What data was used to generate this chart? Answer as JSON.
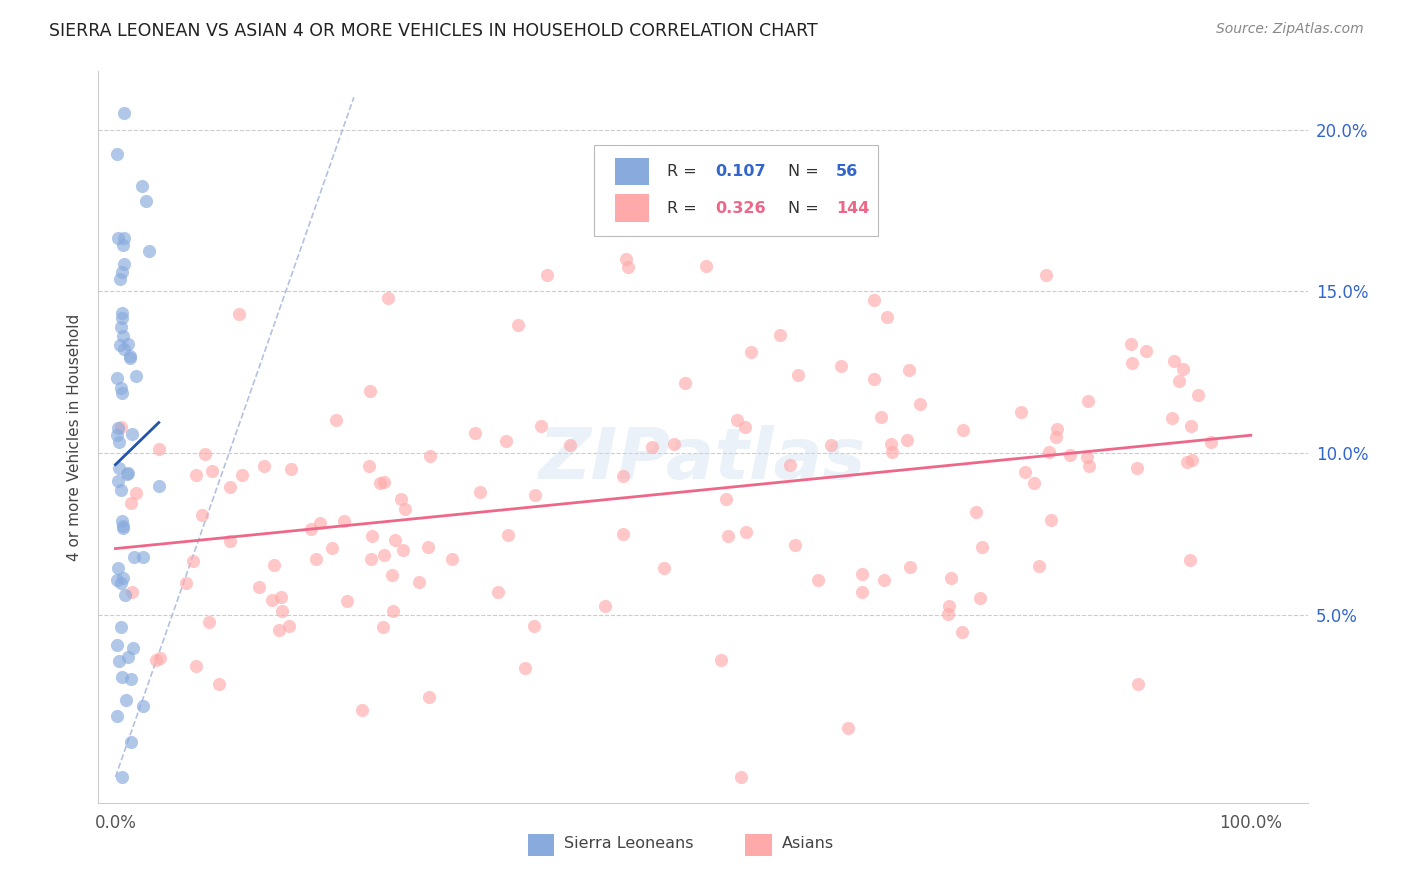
{
  "title": "SIERRA LEONEAN VS ASIAN 4 OR MORE VEHICLES IN HOUSEHOLD CORRELATION CHART",
  "source": "Source: ZipAtlas.com",
  "ylabel": "4 or more Vehicles in Household",
  "ytick_vals": [
    0.05,
    0.1,
    0.15,
    0.2
  ],
  "ytick_labels": [
    "5.0%",
    "10.0%",
    "15.0%",
    "20.0%"
  ],
  "ymin": -0.008,
  "ymax": 0.218,
  "xmin": -0.015,
  "xmax": 1.05,
  "color_sierra": "#88AADD",
  "color_asian": "#FFAAAA",
  "color_sierra_line": "#2255AA",
  "color_asian_line": "#EE6688",
  "color_diag": "#AABBDD",
  "watermark_text": "ZIPatlas",
  "legend_R1": "0.107",
  "legend_N1": "56",
  "legend_R2": "0.326",
  "legend_N2": "144",
  "sierra_seed": 7,
  "asian_seed": 13
}
